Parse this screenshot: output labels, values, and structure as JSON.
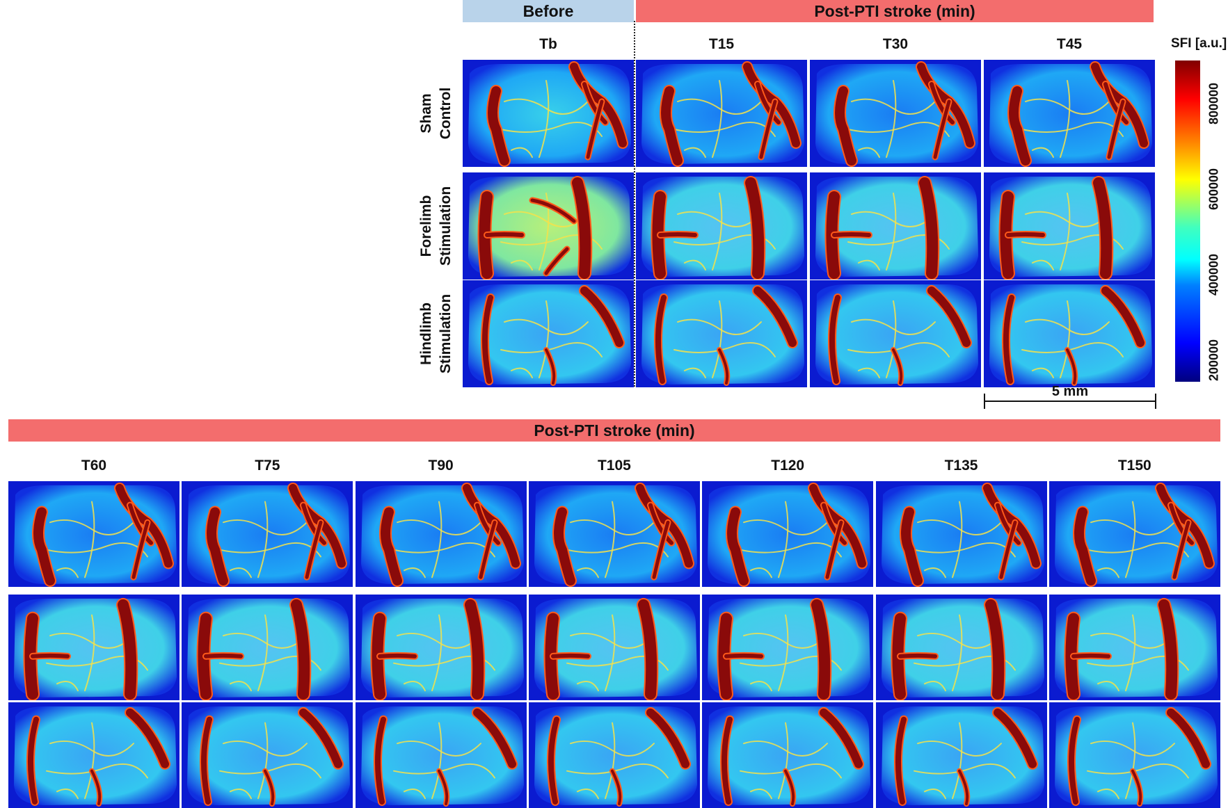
{
  "header_top": {
    "before_label": "Before",
    "post_label": "Post-PTI stroke (min)",
    "before_color": "#b9d3ea",
    "post_color": "#f36d6d"
  },
  "header_bottom": {
    "post_label": "Post-PTI stroke (min)"
  },
  "columns_top": [
    "Tb",
    "T15",
    "T30",
    "T45"
  ],
  "columns_bottom": [
    "T60",
    "T75",
    "T90",
    "T105",
    "T120",
    "T135",
    "T150"
  ],
  "rows": [
    {
      "line1": "Sham",
      "line2": "Control",
      "kind": "sham"
    },
    {
      "line1": "Forelimb",
      "line2": "Stimulation",
      "kind": "forelimb"
    },
    {
      "line1": "Hindlimb",
      "line2": "Stimulation",
      "kind": "hindlimb"
    }
  ],
  "colorbar": {
    "title": "SFI [a.u.]",
    "ticks": [
      "200000",
      "400000",
      "600000",
      "800000"
    ],
    "colormap": "jet"
  },
  "scale_bar": {
    "label": "5 mm"
  }
}
